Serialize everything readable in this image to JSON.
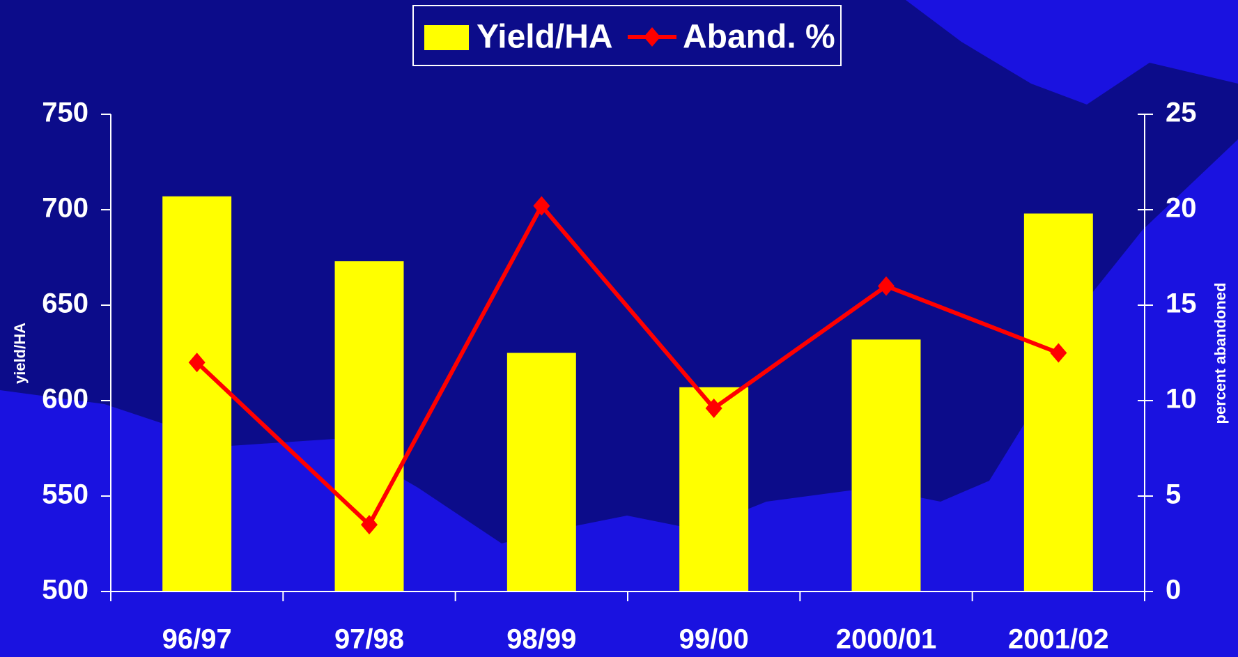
{
  "chart_data": {
    "type": "bar",
    "categories": [
      "96/97",
      "97/98",
      "98/99",
      "99/00",
      "2000/01",
      "2001/02"
    ],
    "series": [
      {
        "name": "Yield/HA",
        "color": "#ffff00",
        "values": [
          707,
          673,
          625,
          607,
          632,
          698
        ]
      },
      {
        "name": "Aband. %",
        "type": "line",
        "axis": "y2",
        "color": "#ff0000",
        "values": [
          12.0,
          3.5,
          20.2,
          9.6,
          16.0,
          12.5
        ]
      }
    ],
    "ylabel": "yield/HA",
    "y2label": "percent abandoned",
    "ylim": [
      500,
      750
    ],
    "yticks": [
      500,
      550,
      600,
      650,
      700,
      750
    ],
    "y2lim": [
      0,
      25
    ],
    "y2ticks": [
      0,
      5,
      10,
      15,
      20,
      25
    ],
    "legend": "top"
  }
}
